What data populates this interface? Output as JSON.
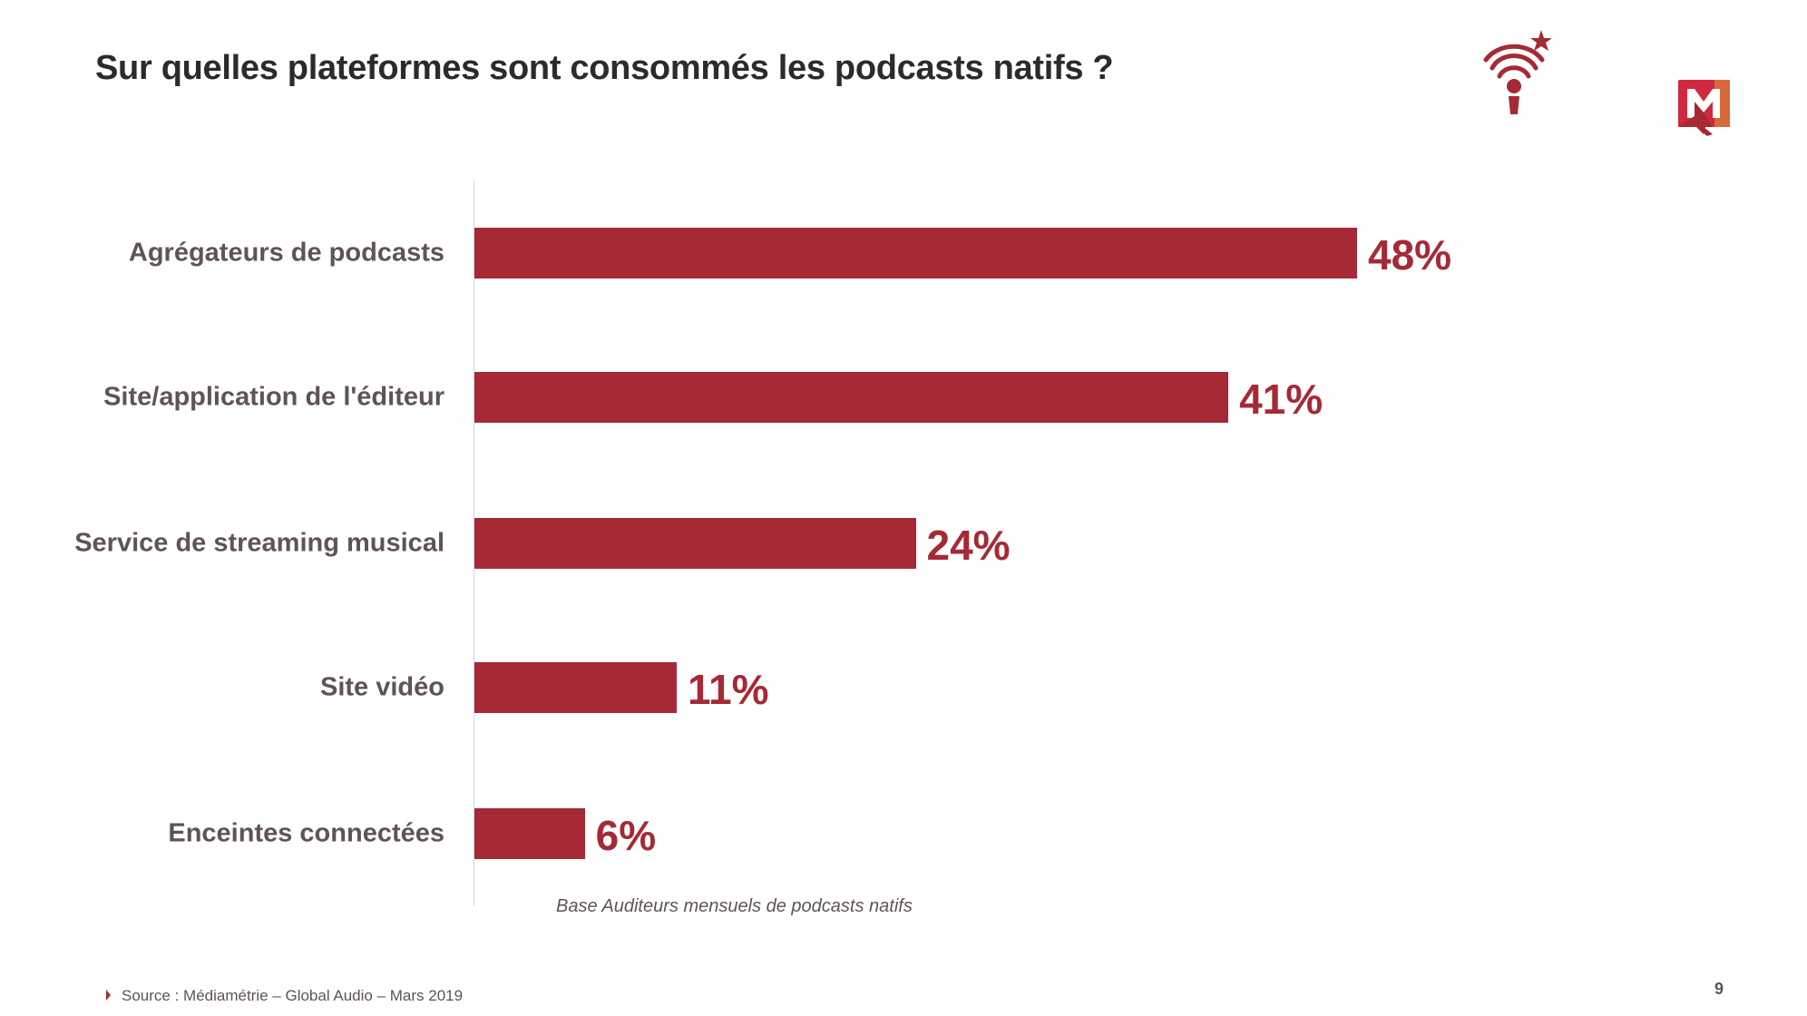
{
  "chart_data": {
    "type": "bar",
    "orientation": "horizontal",
    "title": "Sur quelles plateformes sont consommés les podcasts natifs ?",
    "categories": [
      "Agrégateurs de podcasts",
      "Site/application de l'éditeur",
      "Service de streaming musical",
      "Site vidéo",
      "Enceintes connectées"
    ],
    "values": [
      48,
      41,
      24,
      11,
      6
    ],
    "data_labels": [
      "48%",
      "41%",
      "24%",
      "11%",
      "6%"
    ],
    "unit": "%",
    "xlim": [
      0,
      48
    ],
    "grid": false,
    "bar_color": "#a52a35",
    "label_color": "#a52a35",
    "note": "Base Auditeurs mensuels de podcasts natifs"
  },
  "footer": {
    "source": "Source : Médiamétrie – Global Audio – Mars 2019",
    "page_number": "9"
  },
  "logos": {
    "podcast_logo": "microphone-signal-star-icon",
    "mediametrie_logo": "M"
  }
}
